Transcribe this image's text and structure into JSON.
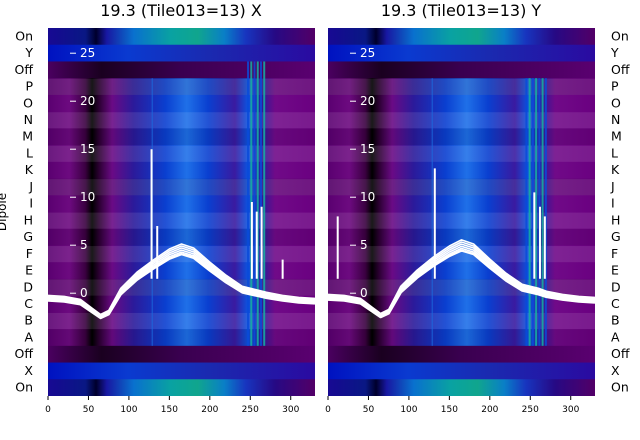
{
  "panels": [
    {
      "title": "19.3 (Tile013=13) X"
    },
    {
      "title": "19.3 (Tile013=13) Y"
    }
  ],
  "ylabel": "Dipole",
  "colors": {
    "trace": "#ffffff",
    "background": "#ffffff"
  },
  "chart_data": {
    "type": "heatmap",
    "colormap": "nipy_spectral-like (black-purple-blue-teal)",
    "dipole_labels_left": [
      "On",
      "Y",
      "Off",
      "P",
      "O",
      "N",
      "M",
      "L",
      "K",
      "J",
      "I",
      "H",
      "G",
      "F",
      "E",
      "D",
      "C",
      "B",
      "A",
      "Off",
      "X",
      "On"
    ],
    "dipole_labels_right": [
      "On",
      "Y",
      "Off",
      "P",
      "O",
      "N",
      "M",
      "L",
      "K",
      "J",
      "I",
      "H",
      "G",
      "F",
      "E",
      "D",
      "C",
      "B",
      "A",
      "Off",
      "X",
      "On"
    ],
    "xticks": [
      0,
      50,
      100,
      150,
      200,
      250,
      300
    ],
    "xlim": [
      0,
      330
    ],
    "power_yticks": [
      0,
      5,
      10,
      15,
      20,
      25
    ],
    "power_ylim": [
      -3,
      27
    ],
    "panels": [
      {
        "name": "X",
        "ref_x": [
          0,
          20,
          40,
          55,
          65,
          75,
          90,
          110,
          130,
          150,
          165,
          180,
          200,
          220,
          240,
          250,
          260,
          270,
          290,
          310,
          330
        ],
        "ref_y": [
          -0.5,
          -0.6,
          -0.9,
          -1.8,
          -2.4,
          -2.0,
          0.2,
          1.8,
          3.0,
          4.1,
          4.6,
          4.2,
          2.8,
          1.5,
          0.4,
          0.2,
          0.0,
          -0.2,
          -0.5,
          -0.7,
          -0.8
        ],
        "spikes": [
          {
            "x": 128,
            "y": 15
          },
          {
            "x": 135,
            "y": 7
          },
          {
            "x": 252,
            "y": 9.5
          },
          {
            "x": 258,
            "y": 8.5
          },
          {
            "x": 264,
            "y": 9
          },
          {
            "x": 290,
            "y": 3.5
          }
        ]
      },
      {
        "name": "Y",
        "ref_x": [
          0,
          20,
          40,
          55,
          65,
          75,
          90,
          110,
          130,
          150,
          165,
          180,
          200,
          220,
          240,
          250,
          260,
          270,
          290,
          310,
          330
        ],
        "ref_y": [
          -0.4,
          -0.5,
          -0.8,
          -1.7,
          -2.3,
          -1.9,
          0.4,
          2.0,
          3.3,
          4.4,
          5.0,
          4.6,
          3.1,
          1.7,
          0.6,
          0.4,
          0.2,
          -0.1,
          -0.4,
          -0.6,
          -0.7
        ],
        "spikes": [
          {
            "x": 132,
            "y": 13
          },
          {
            "x": 255,
            "y": 10.5
          },
          {
            "x": 262,
            "y": 9
          },
          {
            "x": 268,
            "y": 8
          },
          {
            "x": 12,
            "y": 8
          }
        ]
      }
    ]
  }
}
